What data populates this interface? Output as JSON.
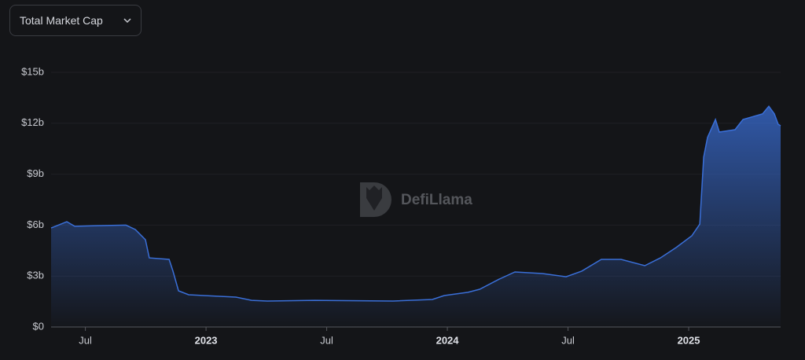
{
  "selector": "Total Market Cap",
  "watermark": "DefiLlama",
  "chart_data": {
    "type": "area",
    "x": [
      2022.358,
      2022.423,
      2022.456,
      2022.57,
      2022.668,
      2022.707,
      2022.749,
      2022.765,
      2022.847,
      2022.863,
      2022.886,
      2022.928,
      2023.124,
      2023.189,
      2023.254,
      2023.45,
      2023.775,
      2023.938,
      2023.987,
      2024.085,
      2024.134,
      2024.215,
      2024.28,
      2024.394,
      2024.492,
      2024.557,
      2024.638,
      2024.72,
      2024.818,
      2024.883,
      2024.948,
      2025.013,
      2025.046,
      2025.062,
      2025.078,
      2025.111,
      2025.127,
      2025.192,
      2025.225,
      2025.306,
      2025.332,
      2025.355,
      2025.371,
      2025.381
    ],
    "values": [
      5.83,
      6.2,
      5.93,
      5.97,
      6.0,
      5.74,
      5.14,
      4.07,
      3.98,
      3.29,
      2.13,
      1.9,
      1.76,
      1.57,
      1.53,
      1.57,
      1.53,
      1.62,
      1.85,
      2.04,
      2.22,
      2.82,
      3.24,
      3.15,
      2.96,
      3.29,
      3.98,
      3.98,
      3.61,
      4.07,
      4.68,
      5.37,
      6.06,
      10.0,
      11.16,
      12.22,
      11.48,
      11.62,
      12.22,
      12.55,
      13.0,
      12.55,
      11.94,
      11.85
    ],
    "color": "#3a6fd8",
    "xlim": [
      2022.358,
      2025.381
    ],
    "xticks": [
      {
        "value": 2022.5,
        "label": "Jul"
      },
      2023,
      {
        "value": 2023.5,
        "label": "Jul"
      },
      2024,
      {
        "value": 2024.5,
        "label": "Jul"
      },
      2025
    ],
    "ylim": [
      0,
      15
    ],
    "yticks": [
      {
        "value": 0,
        "label": "$0"
      },
      {
        "value": 3,
        "label": "$3b"
      },
      {
        "value": 6,
        "label": "$6b"
      },
      {
        "value": 9,
        "label": "$9b"
      },
      {
        "value": 12,
        "label": "$12b"
      },
      {
        "value": 15,
        "label": "$15b"
      }
    ],
    "grid": true
  }
}
